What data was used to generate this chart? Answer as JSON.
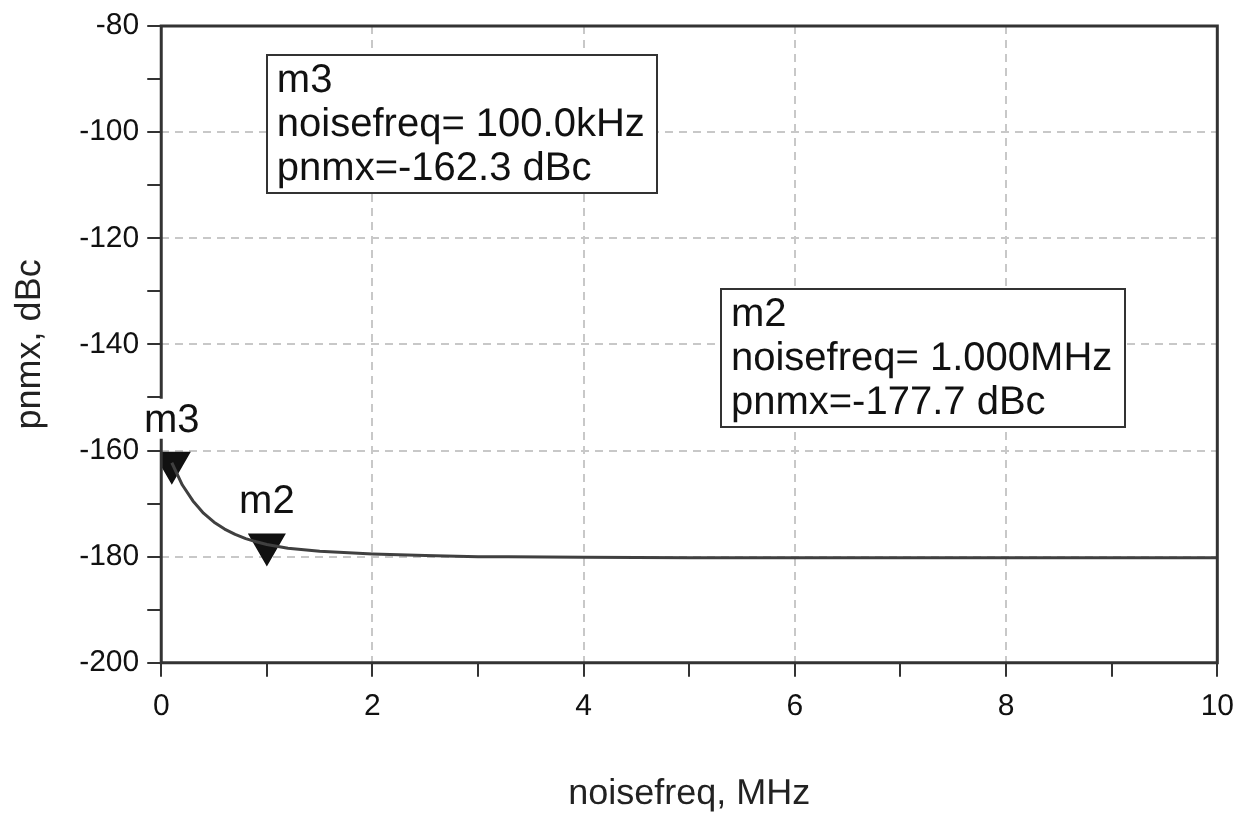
{
  "chart_data": {
    "type": "line",
    "xlabel": "noisefreq, MHz",
    "ylabel": "pnmx, dBc",
    "x": [
      0.1,
      0.2,
      0.3,
      0.4,
      0.5,
      0.6,
      0.7,
      0.8,
      0.9,
      1.0,
      1.2,
      1.5,
      2,
      2.5,
      3,
      4,
      5,
      6,
      7,
      8,
      9,
      10
    ],
    "series": [
      {
        "color": "#404040",
        "values": [
          -162.3,
          -166.5,
          -169.5,
          -171.8,
          -173.5,
          -174.8,
          -175.8,
          -176.6,
          -177.2,
          -177.7,
          -178.4,
          -179.0,
          -179.5,
          -179.8,
          -180.0,
          -180.1,
          -180.2,
          -180.2,
          -180.2,
          -180.2,
          -180.2,
          -180.2
        ]
      },
      {
        "type": "scatter",
        "color": "#111111",
        "marker": "triangle",
        "x": [
          0.1,
          1.0
        ],
        "values": [
          -162.3,
          -177.7
        ]
      }
    ],
    "xlim": [
      0,
      10
    ],
    "xticks": [
      0,
      {
        "value": 1,
        "label": null
      },
      2,
      {
        "value": 3,
        "label": null
      },
      4,
      {
        "value": 5,
        "label": null
      },
      6,
      {
        "value": 7,
        "label": null
      },
      8,
      {
        "value": 9,
        "label": null
      },
      10
    ],
    "ylim": [
      -200,
      -80
    ],
    "yticks": [
      -200,
      {
        "value": -190,
        "label": null
      },
      -180,
      {
        "value": -170,
        "label": null
      },
      -160,
      {
        "value": -150,
        "label": null
      },
      -140,
      {
        "value": -130,
        "label": null
      },
      -120,
      {
        "value": -110,
        "label": null
      },
      -100,
      {
        "value": -90,
        "label": null
      },
      -80
    ],
    "grid": true,
    "legend": false,
    "marker": "none",
    "line_style": "solid",
    "annotations": [
      {
        "text": "m3",
        "x": 0.1,
        "y": -162.3
      },
      {
        "text": "m2",
        "x": 1.0,
        "y": -177.7
      },
      "m3\nnoisefreq= 100.0kHz\npnmx=-162.3 dBc",
      "m2\nnoisefreq= 1.000MHz\npnmx=-177.7 dBc"
    ]
  }
}
